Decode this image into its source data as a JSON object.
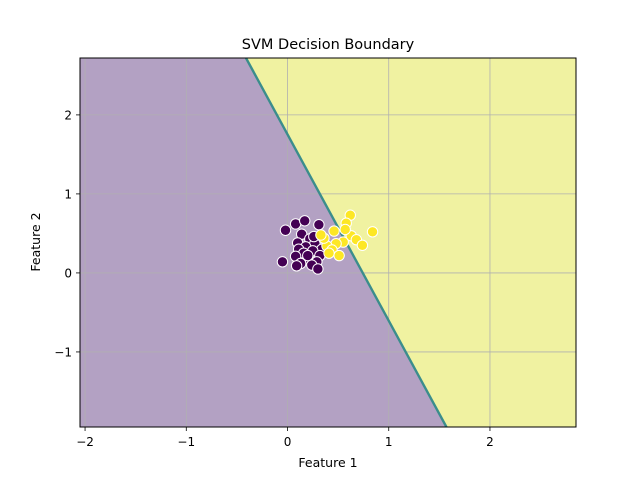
{
  "chart_data": {
    "type": "scatter",
    "title": "SVM Decision Boundary",
    "xlabel": "Feature 1",
    "ylabel": "Feature 2",
    "xlim": [
      -2.05,
      2.85
    ],
    "ylim": [
      -1.95,
      2.72
    ],
    "x_ticks": [
      -2,
      -1,
      0,
      1,
      2
    ],
    "x_tick_labels": [
      "−2",
      "−1",
      "0",
      "1",
      "2"
    ],
    "y_ticks": [
      -1,
      0,
      1,
      2
    ],
    "y_tick_labels": [
      "−1",
      "0",
      "1",
      "2"
    ],
    "grid": true,
    "decision_boundary": {
      "points": [
        [
          -0.41,
          2.72
        ],
        [
          1.57,
          -1.95
        ]
      ],
      "class_0_color": "#b3a1c3",
      "class_1_color": "#f0f2a1",
      "boundary_color": "#3b8d8c"
    },
    "classes": [
      {
        "label": 0,
        "color": "#440154",
        "points": [
          [
            -0.02,
            0.54
          ],
          [
            0.08,
            0.62
          ],
          [
            0.17,
            0.66
          ],
          [
            0.31,
            0.61
          ],
          [
            0.14,
            0.49
          ],
          [
            0.22,
            0.43
          ],
          [
            0.1,
            0.38
          ],
          [
            0.27,
            0.37
          ],
          [
            0.18,
            0.33
          ],
          [
            0.34,
            0.3
          ],
          [
            0.11,
            0.3
          ],
          [
            0.25,
            0.28
          ],
          [
            0.16,
            0.25
          ],
          [
            0.32,
            0.22
          ],
          [
            0.08,
            0.21
          ],
          [
            0.2,
            0.18
          ],
          [
            -0.05,
            0.14
          ],
          [
            0.29,
            0.14
          ],
          [
            0.13,
            0.12
          ],
          [
            0.24,
            0.1
          ],
          [
            0.09,
            0.09
          ],
          [
            0.3,
            0.05
          ],
          [
            0.2,
            0.22
          ],
          [
            0.26,
            0.46
          ]
        ]
      },
      {
        "label": 1,
        "color": "#fde725",
        "points": [
          [
            0.62,
            0.73
          ],
          [
            0.58,
            0.63
          ],
          [
            0.84,
            0.52
          ],
          [
            0.46,
            0.53
          ],
          [
            0.63,
            0.47
          ],
          [
            0.68,
            0.42
          ],
          [
            0.55,
            0.39
          ],
          [
            0.48,
            0.37
          ],
          [
            0.39,
            0.34
          ],
          [
            0.74,
            0.35
          ],
          [
            0.44,
            0.29
          ],
          [
            0.51,
            0.22
          ],
          [
            0.36,
            0.44
          ],
          [
            0.57,
            0.55
          ],
          [
            0.33,
            0.48
          ],
          [
            0.41,
            0.25
          ]
        ]
      }
    ]
  }
}
